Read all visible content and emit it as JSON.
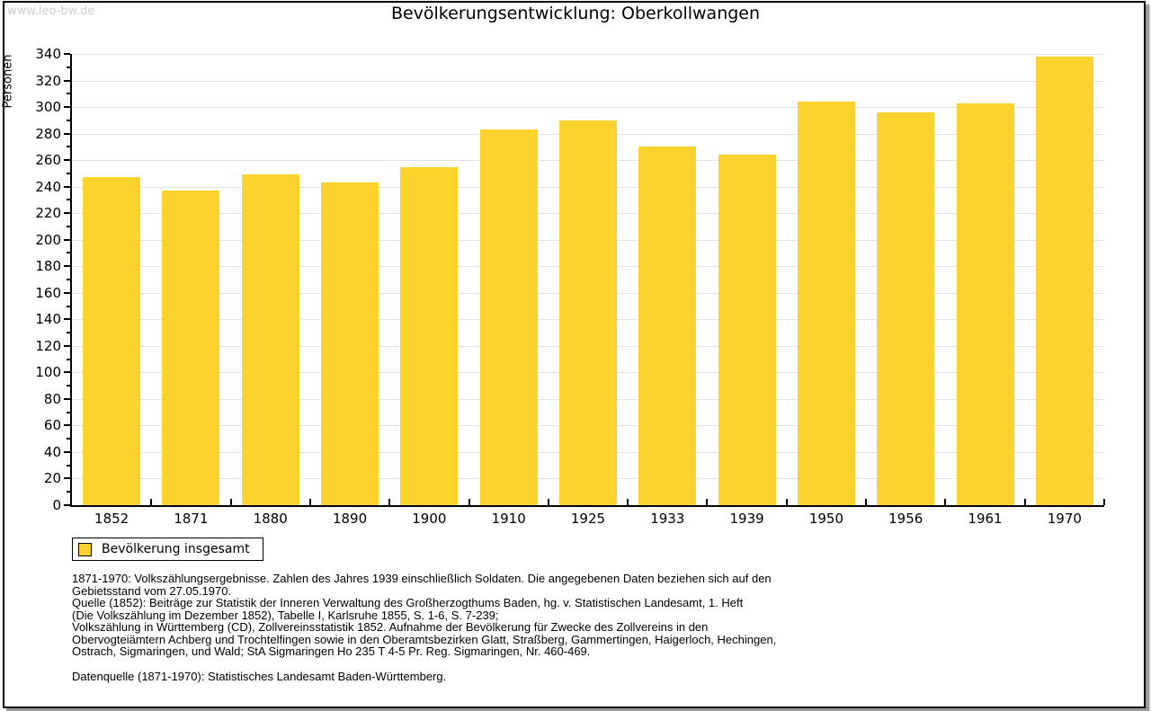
{
  "page": {
    "watermark": "www.leo-bw.de",
    "title": "Bevölkerungsentwicklung: Oberkollwangen"
  },
  "chart_data": {
    "type": "bar",
    "title": "Bevölkerungsentwicklung: Oberkollwangen",
    "xlabel": "",
    "ylabel": "Personen",
    "categories": [
      "1852",
      "1871",
      "1880",
      "1890",
      "1900",
      "1910",
      "1925",
      "1933",
      "1939",
      "1950",
      "1956",
      "1961",
      "1970"
    ],
    "values": [
      247,
      237,
      249,
      243,
      255,
      283,
      290,
      270,
      264,
      304,
      296,
      303,
      338
    ],
    "series_name": "Bevölkerung insgesamt",
    "ylim": [
      0,
      340
    ],
    "ytick_step": 20,
    "ytick_minor_step": 10,
    "grid": true,
    "bar_color": "#fcd32d",
    "legend_position": "bottom-left"
  },
  "legend": {
    "label": "Bevölkerung insgesamt"
  },
  "footnotes": {
    "lines": [
      "1871-1970: Volkszählungsergebnisse. Zahlen des Jahres 1939 einschließlich Soldaten. Die angegebenen Daten beziehen sich auf den",
      "Gebietsstand vom 27.05.1970.",
      "Quelle (1852): Beiträge zur Statistik der Inneren Verwaltung des Großherzogthums Baden, hg. v. Statistischen Landesamt, 1. Heft",
      "(Die Volkszählung im Dezember 1852), Tabelle I, Karlsruhe 1855, S. 1-6, S. 7-239;",
      "Volkszählung in Württemberg (CD), Zollvereinsstatistik 1852. Aufnahme der Bevölkerung für Zwecke des Zollvereins in den",
      "Obervogteiämtern Achberg und Trochtelfingen sowie in den Oberamtsbezirken Glatt, Straßberg, Gammertingen, Haigerloch, Hechingen,",
      "Ostrach, Sigmaringen, und Wald; StA Sigmaringen Ho 235 T 4-5 Pr. Reg. Sigmaringen, Nr. 460-469."
    ],
    "datasource": "Datenquelle (1871-1970): Statistisches Landesamt Baden-Württemberg."
  }
}
